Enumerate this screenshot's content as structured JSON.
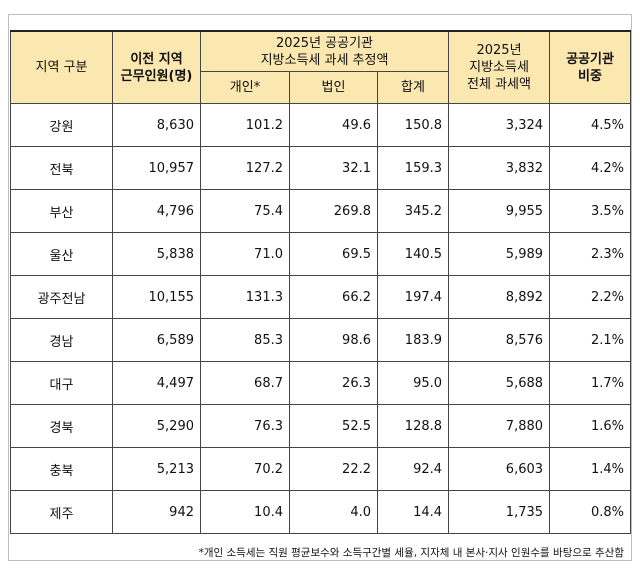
{
  "header": {
    "region": "지역 구분",
    "relocation_line1": "이전 지역",
    "relocation_line2": "근무인원(명)",
    "estimate_line1": "2025년 공공기관",
    "estimate_line2": "지방소득세 과세 추정액",
    "individual": "개인*",
    "corporate": "법인",
    "sum": "합계",
    "total_line1": "2025년",
    "total_line2": "지방소득세",
    "total_line3": "전체 과세액",
    "share_line1": "공공기관",
    "share_line2": "비중"
  },
  "rows": [
    {
      "region": "강원",
      "staff": "8,630",
      "individual": "101.2",
      "corporate": "49.6",
      "sum": "150.8",
      "total": "3,324",
      "share": "4.5%"
    },
    {
      "region": "전북",
      "staff": "10,957",
      "individual": "127.2",
      "corporate": "32.1",
      "sum": "159.3",
      "total": "3,832",
      "share": "4.2%"
    },
    {
      "region": "부산",
      "staff": "4,796",
      "individual": "75.4",
      "corporate": "269.8",
      "sum": "345.2",
      "total": "9,955",
      "share": "3.5%"
    },
    {
      "region": "울산",
      "staff": "5,838",
      "individual": "71.0",
      "corporate": "69.5",
      "sum": "140.5",
      "total": "5,989",
      "share": "2.3%"
    },
    {
      "region": "광주전남",
      "staff": "10,155",
      "individual": "131.3",
      "corporate": "66.2",
      "sum": "197.4",
      "total": "8,892",
      "share": "2.2%"
    },
    {
      "region": "경남",
      "staff": "6,589",
      "individual": "85.3",
      "corporate": "98.6",
      "sum": "183.9",
      "total": "8,576",
      "share": "2.1%"
    },
    {
      "region": "대구",
      "staff": "4,497",
      "individual": "68.7",
      "corporate": "26.3",
      "sum": "95.0",
      "total": "5,688",
      "share": "1.7%"
    },
    {
      "region": "경북",
      "staff": "5,290",
      "individual": "76.3",
      "corporate": "52.5",
      "sum": "128.8",
      "total": "7,880",
      "share": "1.6%"
    },
    {
      "region": "충북",
      "staff": "5,213",
      "individual": "70.2",
      "corporate": "22.2",
      "sum": "92.4",
      "total": "6,603",
      "share": "1.4%"
    },
    {
      "region": "제주",
      "staff": "942",
      "individual": "10.4",
      "corporate": "4.0",
      "sum": "14.4",
      "total": "1,735",
      "share": "0.8%"
    }
  ],
  "footnote": "*개인 소득세는 직원 평균보수와 소득구간별 세율, 지자체 내 본사·지사 인원수를 바탕으로 추산함",
  "colors": {
    "header_bg": "#fbe7b0",
    "border": "#444444"
  }
}
